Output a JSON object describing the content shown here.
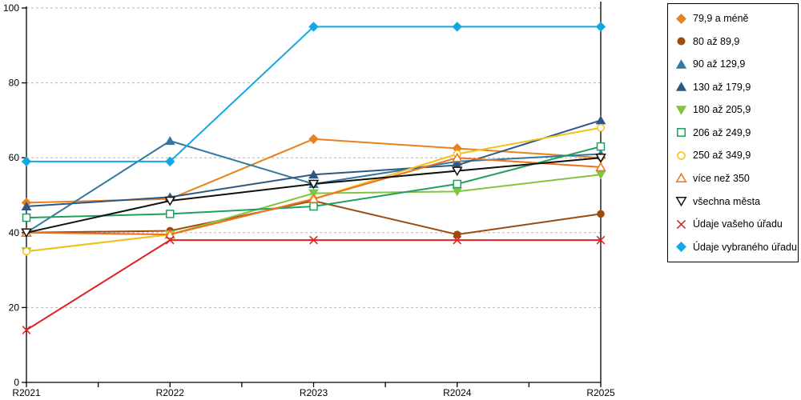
{
  "chart_data": {
    "type": "line",
    "title": "",
    "xlabel": "",
    "ylabel": "",
    "categories": [
      "R2021",
      "R2022",
      "R2023",
      "R2024",
      "R2025"
    ],
    "ylim": [
      0,
      100
    ],
    "yticks": [
      0,
      20,
      40,
      60,
      80,
      100
    ],
    "ytick_labels": [
      "0",
      "20",
      "40",
      "60",
      "80",
      "100"
    ],
    "grid": "dashed-horizontal",
    "legend_position": "right-outside-boxed",
    "colors": {
      "grid": "#b4b4b4",
      "axis": "#000000"
    },
    "series": [
      {
        "name": "79,9 a méně",
        "marker": "diamond",
        "fill": "solid",
        "color": "#E8811E",
        "values": [
          48,
          49,
          65,
          62.5,
          60
        ]
      },
      {
        "name": "80 až 89,9",
        "marker": "circle",
        "fill": "solid",
        "color": "#9E4B0E",
        "values": [
          40,
          40.5,
          48.5,
          39.5,
          45
        ]
      },
      {
        "name": "90 až 129,9",
        "marker": "triangle-up",
        "fill": "solid",
        "color": "#31799F",
        "values": [
          40,
          64.5,
          53,
          59,
          61
        ]
      },
      {
        "name": "130 až 179,9",
        "marker": "triangle-up",
        "fill": "solid",
        "color": "#2E5884",
        "values": [
          47,
          49.5,
          55.5,
          58,
          70
        ]
      },
      {
        "name": "180 až 205,9",
        "marker": "triangle-down",
        "fill": "solid",
        "color": "#83C341",
        "values": [
          35,
          39.5,
          50.5,
          51,
          55.5
        ]
      },
      {
        "name": "206 až 249,9",
        "marker": "square",
        "fill": "open",
        "color": "#1FA05E",
        "values": [
          44,
          45,
          47,
          53,
          63
        ]
      },
      {
        "name": "250 až 349,9",
        "marker": "circle",
        "fill": "open",
        "color": "#EFC319",
        "values": [
          35,
          39.5,
          49,
          61,
          68
        ]
      },
      {
        "name": "více než 350",
        "marker": "triangle-up",
        "fill": "open",
        "color": "#EE7020",
        "values": [
          40,
          39.5,
          49,
          60,
          57.5
        ]
      },
      {
        "name": "všechna města",
        "marker": "triangle-down",
        "fill": "open",
        "color": "#111111",
        "values": [
          40,
          48.5,
          53,
          56.5,
          60
        ]
      },
      {
        "name": "Údaje vašeho úřadu",
        "marker": "x",
        "fill": "open",
        "color": "#E02222",
        "values": [
          14,
          38,
          38,
          38,
          38
        ]
      },
      {
        "name": "Údaje vybraného úřadu",
        "marker": "diamond",
        "fill": "solid",
        "color": "#14A7E4",
        "values": [
          59,
          59,
          95,
          95,
          95
        ]
      }
    ]
  }
}
